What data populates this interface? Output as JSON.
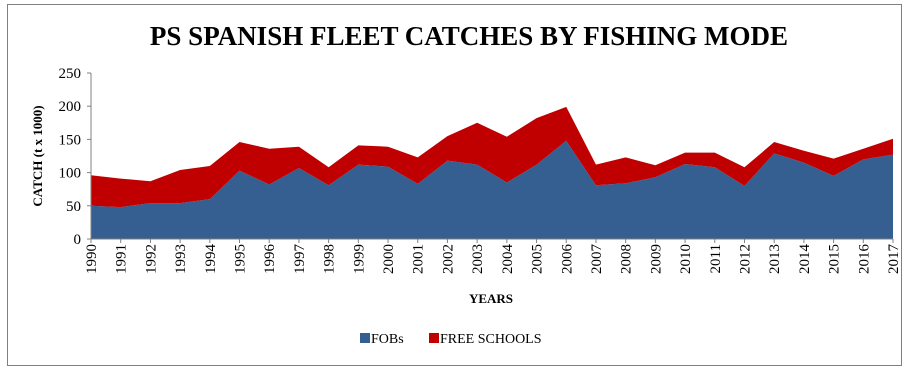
{
  "chart_data": {
    "type": "area",
    "stacked": true,
    "title": "PS SPANISH FLEET CATCHES BY FISHING MODE",
    "xlabel": "YEARS",
    "ylabel": "CATCH (t x 1000)",
    "ylim": [
      0,
      250
    ],
    "yticks": [
      "0",
      "50",
      "100",
      "150",
      "200",
      "250"
    ],
    "grid": false,
    "legend_position": "bottom",
    "categories": [
      "1990",
      "1991",
      "1992",
      "1993",
      "1994",
      "1995",
      "1996",
      "1997",
      "1998",
      "1999",
      "2000",
      "2001",
      "2002",
      "2003",
      "2004",
      "2005",
      "2006",
      "2007",
      "2008",
      "2009",
      "2010",
      "2011",
      "2012",
      "2013",
      "2014",
      "2015",
      "2016",
      "2017"
    ],
    "series": [
      {
        "name": "FOBs",
        "color": "#355E91",
        "values": [
          50,
          48,
          54,
          54,
          60,
          103,
          82,
          107,
          81,
          112,
          109,
          83,
          118,
          112,
          85,
          112,
          148,
          81,
          84,
          93,
          113,
          108,
          80,
          129,
          115,
          95,
          120,
          127
        ]
      },
      {
        "name": "FREE SCHOOLS",
        "color": "#C00000",
        "values": [
          46,
          43,
          33,
          50,
          50,
          43,
          54,
          32,
          27,
          29,
          30,
          40,
          37,
          63,
          69,
          70,
          51,
          31,
          39,
          18,
          17,
          22,
          28,
          17,
          18,
          26,
          16,
          24
        ]
      }
    ]
  }
}
